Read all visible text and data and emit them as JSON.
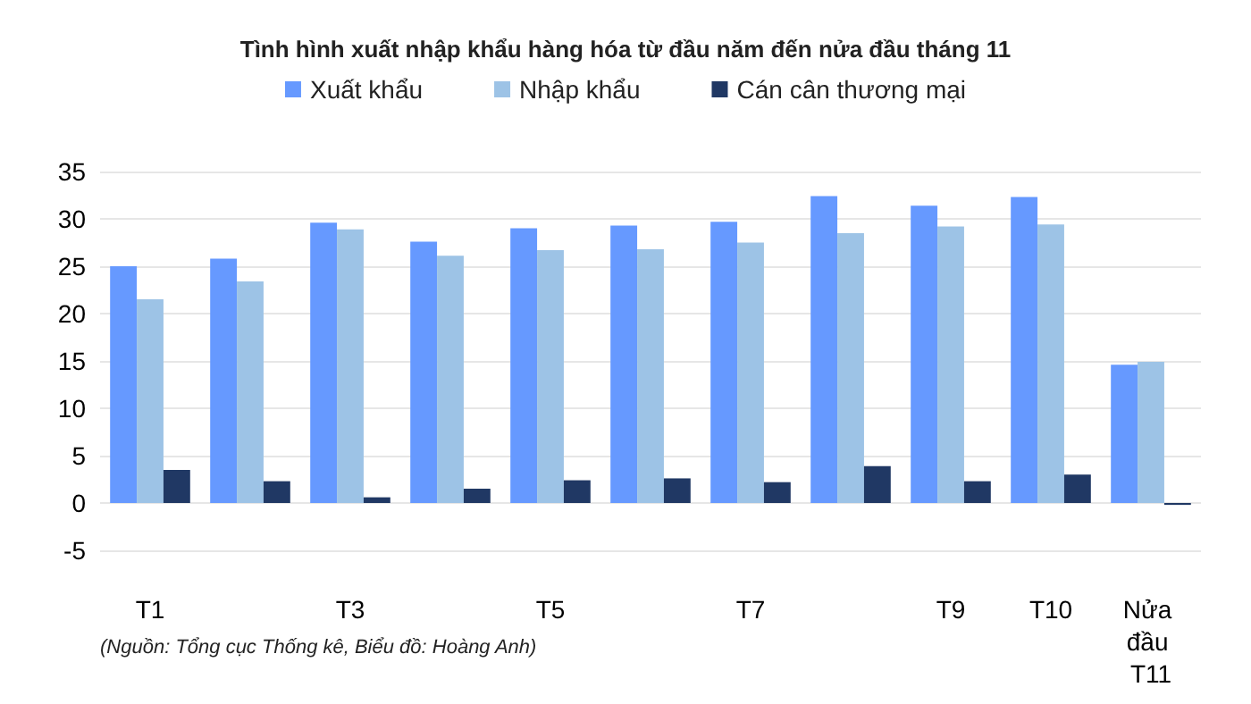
{
  "chart_data": {
    "type": "bar",
    "title": "Tình hình xuất nhập khẩu hàng hóa từ đầu năm đến nửa đầu tháng 11",
    "categories": [
      "T1",
      null,
      "T3",
      null,
      "T5",
      null,
      "T7",
      null,
      "T9",
      "T10",
      "Nửa đầu T11"
    ],
    "series": [
      {
        "name": "Xuất khẩu",
        "color": "#6699ff",
        "values": [
          25.0,
          25.8,
          29.6,
          27.6,
          29.0,
          29.3,
          29.7,
          32.4,
          31.4,
          32.3,
          14.6
        ]
      },
      {
        "name": "Nhập khẩu",
        "color": "#9dc3e6",
        "values": [
          21.5,
          23.4,
          28.9,
          26.1,
          26.7,
          26.8,
          27.5,
          28.5,
          29.2,
          29.4,
          14.9
        ]
      },
      {
        "name": "Cán cân thương mại",
        "color": "#203864",
        "values": [
          3.5,
          2.3,
          0.6,
          1.5,
          2.4,
          2.6,
          2.2,
          3.9,
          2.3,
          3.0,
          -0.2
        ]
      }
    ],
    "ylim": [
      -5,
      35
    ],
    "yticks": [
      -5,
      0,
      5,
      10,
      15,
      20,
      25,
      30,
      35
    ],
    "grid": "y",
    "legend": "top",
    "annotations": [
      "(Nguồn: Tổng cục Thống kê, Biểu đồ: Hoàng Anh)"
    ]
  }
}
